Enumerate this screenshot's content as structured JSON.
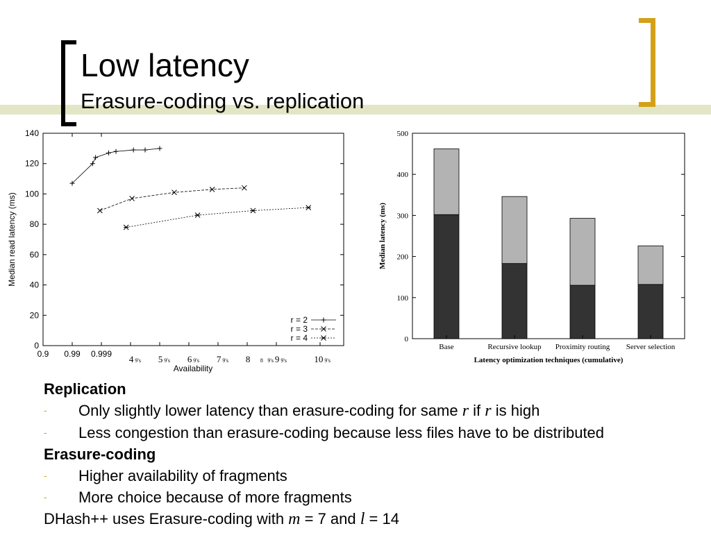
{
  "slide": {
    "title": "Low latency",
    "subtitle": "Erasure-coding vs. replication"
  },
  "bullets": {
    "replication_head": "Replication",
    "rep_item1_a": "Only slightly lower latency than erasure-coding for same ",
    "rep_item1_var1": "r",
    "rep_item1_b": " if ",
    "rep_item1_var2": "r",
    "rep_item1_c": " is high",
    "rep_item2": "Less congestion than erasure-coding because less files have to be distributed",
    "erasure_head": "Erasure-coding",
    "era_item1": "Higher availability of fragments",
    "era_item2": "More choice because of more fragments",
    "dhash_a": "DHash++ uses Erasure-coding with ",
    "dhash_var_m": "m",
    "dhash_b": " = 7 and ",
    "dhash_var_l": "l",
    "dhash_c": " = 14",
    "dash": "-"
  },
  "chart_data": [
    {
      "type": "line",
      "xlabel": "Availability",
      "ylabel": "Median read latency (ms)",
      "ylim": [
        0,
        140
      ],
      "y_ticks": [
        "0",
        "20",
        "40",
        "60",
        "80",
        "100",
        "120",
        "140"
      ],
      "x_ticks": [
        "0.9",
        "0.99",
        "0.999",
        "4",
        "9's",
        "5",
        "9's",
        "6",
        "9's",
        "7",
        "9's",
        "8",
        "8",
        "9's",
        "9",
        "9's",
        "10",
        "9's"
      ],
      "grid": false,
      "legend_position": "bottom-right",
      "series": [
        {
          "name": "r = 2",
          "marker": "+",
          "x": [
            1.0,
            1.7,
            1.8,
            2.25,
            2.5,
            3.1,
            3.5,
            4.0
          ],
          "y": [
            107,
            120,
            124,
            127,
            128,
            129,
            129,
            130
          ]
        },
        {
          "name": "r = 3",
          "marker": "x",
          "x": [
            1.95,
            3.05,
            4.5,
            5.8,
            6.9
          ],
          "y": [
            89,
            97,
            101,
            103,
            104
          ]
        },
        {
          "name": "r = 4",
          "marker": "*",
          "x": [
            2.85,
            5.3,
            7.2,
            9.1
          ],
          "y": [
            78,
            86,
            89,
            91
          ]
        }
      ]
    },
    {
      "type": "bar",
      "xlabel": "Latency optimization techniques (cumulative)",
      "ylabel": "Median latency (ms)",
      "ylim": [
        0,
        500
      ],
      "y_ticks": [
        "0",
        "100",
        "200",
        "300",
        "400",
        "500"
      ],
      "categories": [
        "Base",
        "Recursive lookup",
        "Proximity routing",
        "Server selection"
      ],
      "series": [
        {
          "values": [
            302,
            183,
            130,
            132
          ]
        },
        {
          "values": [
            160,
            163,
            163,
            94
          ]
        }
      ],
      "totals": [
        462,
        346,
        293,
        226
      ],
      "colors": [
        "#333333",
        "#b3b3b3"
      ]
    }
  ]
}
